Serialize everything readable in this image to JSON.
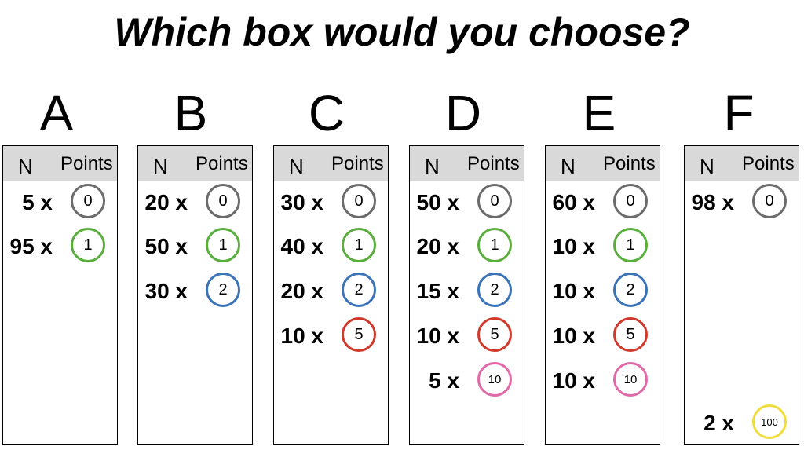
{
  "title": "Which box would you choose?",
  "headers": {
    "n": "N",
    "points": "Points"
  },
  "colors": {
    "0": "#6b6b6b",
    "1": "#5aae3c",
    "2": "#3a73b8",
    "5": "#d03a2c",
    "10": "#e06aa8",
    "100": "#f0dc3c"
  },
  "boxes": [
    {
      "letter": "A",
      "rows": [
        {
          "count": "5 x",
          "points": "0"
        },
        {
          "count": "95 x",
          "points": "1"
        }
      ]
    },
    {
      "letter": "B",
      "rows": [
        {
          "count": "20 x",
          "points": "0"
        },
        {
          "count": "50 x",
          "points": "1"
        },
        {
          "count": "30 x",
          "points": "2"
        }
      ]
    },
    {
      "letter": "C",
      "rows": [
        {
          "count": "30 x",
          "points": "0"
        },
        {
          "count": "40 x",
          "points": "1"
        },
        {
          "count": "20 x",
          "points": "2"
        },
        {
          "count": "10 x",
          "points": "5"
        }
      ]
    },
    {
      "letter": "D",
      "rows": [
        {
          "count": "50 x",
          "points": "0"
        },
        {
          "count": "20 x",
          "points": "1"
        },
        {
          "count": "15 x",
          "points": "2"
        },
        {
          "count": "10 x",
          "points": "5"
        },
        {
          "count": "5 x",
          "points": "10"
        }
      ]
    },
    {
      "letter": "E",
      "rows": [
        {
          "count": "60 x",
          "points": "0"
        },
        {
          "count": "10 x",
          "points": "1"
        },
        {
          "count": "10 x",
          "points": "2"
        },
        {
          "count": "10 x",
          "points": "5"
        },
        {
          "count": "10 x",
          "points": "10"
        }
      ]
    },
    {
      "letter": "F",
      "rows": [
        {
          "count": "98 x",
          "points": "0"
        },
        {
          "count": "2 x",
          "points": "100"
        }
      ]
    }
  ]
}
